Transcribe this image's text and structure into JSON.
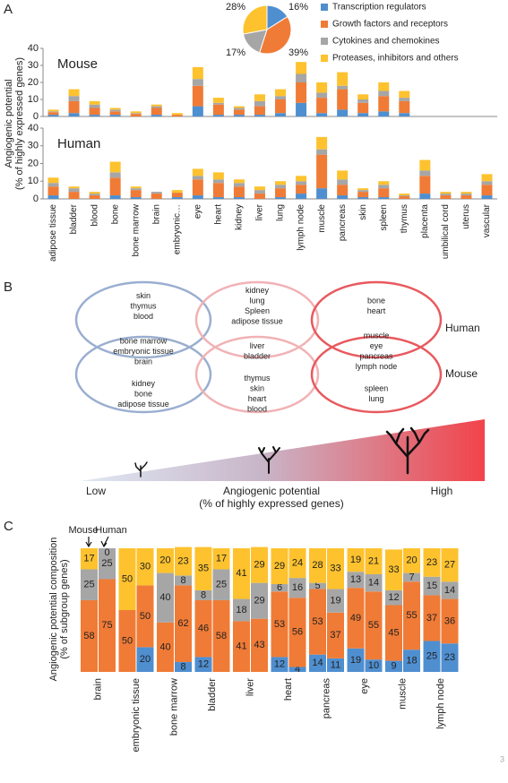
{
  "panel_labels": [
    "A",
    "B",
    "C"
  ],
  "page_number": "3",
  "chart_data": [
    {
      "type": "pie",
      "categories": [
        "Transcription regulators",
        "Growth factors and receptors",
        "Cytokines and chemokines",
        "Proteases, inhibitors and others"
      ],
      "values": [
        16,
        39,
        17,
        28
      ],
      "value_labels": [
        "16%",
        "39%",
        "17%",
        "28%"
      ],
      "colors": [
        "#4f8fd0",
        "#f07b36",
        "#a6a6a6",
        "#fdc22e"
      ]
    },
    {
      "type": "bar",
      "stacked": true,
      "title": "Mouse",
      "ylim": [
        0,
        40
      ],
      "yticks": [
        0,
        10,
        20,
        30,
        40
      ],
      "grid": false,
      "series": [
        {
          "color": "#4f8fd0",
          "values": [
            1,
            2,
            1,
            1,
            0,
            1,
            0,
            6,
            1,
            1,
            1,
            2,
            8,
            2,
            4,
            2,
            3,
            2,
            null,
            null,
            null,
            null
          ]
        },
        {
          "color": "#f07b36",
          "values": [
            1.5,
            7,
            4,
            2,
            1.5,
            4,
            1,
            12,
            6,
            3,
            5,
            8,
            12,
            9,
            12,
            6,
            9,
            7,
            null,
            null,
            null,
            null
          ]
        },
        {
          "color": "#a6a6a6",
          "values": [
            0.5,
            3,
            2,
            1,
            0.5,
            1,
            0,
            4,
            1,
            1,
            3,
            2,
            5,
            3,
            2,
            2,
            3,
            2,
            null,
            null,
            null,
            null
          ]
        },
        {
          "color": "#fdc22e",
          "values": [
            1,
            4,
            2,
            1,
            1,
            1,
            1,
            7,
            3,
            1,
            4,
            4,
            7,
            6,
            8,
            3,
            5,
            4,
            null,
            null,
            null,
            null
          ]
        }
      ]
    },
    {
      "type": "bar",
      "stacked": true,
      "title": "Human",
      "ylabel": [
        "Angiogenic potential",
        "(% of highly expressed genes)"
      ],
      "categories": [
        "adipose tissue",
        "bladder",
        "blood",
        "bone",
        "bone marrow",
        "brain",
        "embryonic…",
        "eye",
        "heart",
        "kidney",
        "liver",
        "lung",
        "lymph node",
        "muscle",
        "pancreas",
        "skin",
        "spleen",
        "thymus",
        "placenta",
        "umbilical cord",
        "uterus",
        "vascular"
      ],
      "ylim": [
        0,
        40
      ],
      "yticks": [
        0,
        10,
        20,
        30,
        40
      ],
      "grid": false,
      "series": [
        {
          "color": "#4f8fd0",
          "values": [
            2,
            0,
            0,
            2,
            1,
            0,
            1,
            2,
            1,
            1,
            0,
            1,
            3,
            6,
            2,
            1,
            1,
            0,
            3,
            0,
            0,
            2
          ]
        },
        {
          "color": "#f07b36",
          "values": [
            5,
            4,
            2,
            10,
            4,
            3,
            2.5,
            9,
            8,
            6,
            3,
            5,
            5,
            19,
            6,
            3,
            5,
            1.5,
            10,
            2,
            2,
            6
          ]
        },
        {
          "color": "#a6a6a6",
          "values": [
            2,
            2,
            1,
            3,
            1,
            1,
            0,
            2,
            2,
            2,
            2,
            2,
            2,
            3,
            3,
            1,
            2,
            0.5,
            3,
            1,
            1,
            2
          ]
        },
        {
          "color": "#fdc22e",
          "values": [
            3,
            1,
            1,
            6,
            1,
            0,
            1.5,
            4,
            4,
            2,
            2,
            2,
            3,
            7,
            5,
            1,
            2,
            1,
            6,
            1,
            1,
            4
          ]
        }
      ]
    },
    {
      "type": "stacked-percent",
      "ylabel": [
        "Angiogenic potential composition",
        "(% of subgroup genes)"
      ],
      "ylim": [
        0,
        100
      ],
      "categories": [
        "brain",
        "embryonic tissue",
        "bone marrow",
        "bladder",
        "liver",
        "heart",
        "pancreas",
        "eye",
        "muscle",
        "lymph node"
      ],
      "stacks": [
        {
          "name": "Mouse",
          "series": [
            {
              "color": "#4f8fd0",
              "values": [
                0,
                0,
                0,
                12,
                0,
                12,
                14,
                19,
                9,
                25
              ]
            },
            {
              "color": "#f07b36",
              "values": [
                58,
                50,
                40,
                46,
                41,
                53,
                53,
                49,
                45,
                37
              ]
            },
            {
              "color": "#a6a6a6",
              "values": [
                25,
                0,
                40,
                8,
                18,
                6,
                5,
                13,
                12,
                15
              ]
            },
            {
              "color": "#fdc22e",
              "values": [
                17,
                50,
                20,
                35,
                41,
                29,
                28,
                19,
                33,
                23
              ]
            }
          ]
        },
        {
          "name": "Human",
          "series": [
            {
              "color": "#4f8fd0",
              "values": [
                0,
                20,
                8,
                0,
                0,
                4,
                11,
                10,
                18,
                23
              ]
            },
            {
              "color": "#f07b36",
              "values": [
                75,
                50,
                62,
                58,
                43,
                56,
                37,
                55,
                55,
                36
              ]
            },
            {
              "color": "#a6a6a6",
              "values": [
                25,
                0,
                8,
                25,
                29,
                16,
                19,
                14,
                7,
                14
              ]
            },
            {
              "color": "#fdc22e",
              "values": [
                0,
                30,
                23,
                17,
                29,
                24,
                33,
                21,
                20,
                27
              ]
            }
          ]
        }
      ]
    }
  ],
  "diagram": {
    "groups": [
      {
        "human": [
          "skin",
          "thymus",
          "blood"
        ],
        "shared": [
          "bone marrow",
          "embryonic tissue",
          "brain"
        ],
        "mouse": [
          "kidney",
          "bone",
          "adipose tissue"
        ]
      },
      {
        "human": [
          "kidney",
          "lung",
          "Spleen",
          "adipose tissue"
        ],
        "shared": [
          "liver",
          "bladder"
        ],
        "mouse": [
          "thymus",
          "skin",
          "heart",
          "blood"
        ]
      },
      {
        "human": [
          "bone",
          "heart"
        ],
        "shared": [
          "muscle",
          "eye",
          "pancreas",
          "lymph node"
        ],
        "mouse": [
          "spleen",
          "lung"
        ]
      }
    ],
    "human_label": "Human",
    "mouse_label": "Mouse",
    "scale": {
      "low": "Low",
      "high": "High",
      "label": [
        "Angiogenic potential",
        "(% of highly expressed genes)"
      ]
    }
  }
}
